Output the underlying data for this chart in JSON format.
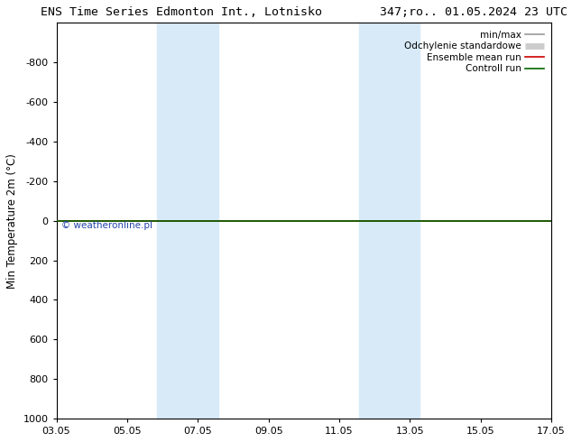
{
  "title": "ENS Time Series Edmonton Int., Lotnisko        347;ro.. 01.05.2024 23 UTC",
  "ylabel": "Min Temperature 2m (°C)",
  "watermark": "© weatheronline.pl",
  "xlim_dates": [
    "03.05",
    "05.05",
    "07.05",
    "09.05",
    "11.05",
    "13.05",
    "15.05",
    "17.05"
  ],
  "xlim": [
    0,
    14
  ],
  "ylim_bottom": -1000,
  "ylim_top": 1000,
  "yticks": [
    -800,
    -600,
    -400,
    -200,
    0,
    200,
    400,
    600,
    800,
    1000
  ],
  "shaded_bands": [
    {
      "xmin": 2.85,
      "xmax": 4.57
    },
    {
      "xmin": 8.57,
      "xmax": 10.28
    }
  ],
  "shade_color": "#d8eaf8",
  "legend_entries": [
    {
      "label": "min/max",
      "color": "#999999",
      "lw": 1.2
    },
    {
      "label": "Odchylenie standardowe",
      "color": "#cccccc",
      "lw": 5
    },
    {
      "label": "Ensemble mean run",
      "color": "#cc0000",
      "lw": 1.2
    },
    {
      "label": "Controll run",
      "color": "#006600",
      "lw": 1.2
    }
  ],
  "title_fontsize": 9.5,
  "axis_label_fontsize": 8.5,
  "tick_fontsize": 8,
  "legend_fontsize": 7.5,
  "watermark_color": "#2244aa",
  "background_color": "#ffffff"
}
